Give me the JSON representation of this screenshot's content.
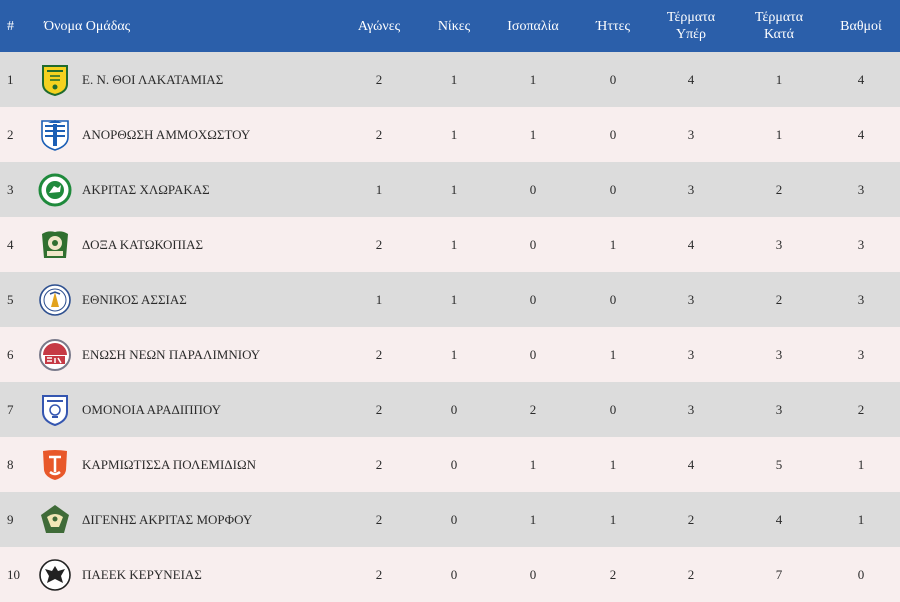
{
  "header": {
    "rank": "#",
    "team": "Όνομα Ομάδας",
    "played": "Αγώνες",
    "wins": "Νίκες",
    "draws": "Ισοπαλία",
    "losses": "Ήττες",
    "gf_line1": "Τέρματα",
    "gf_line2": "Υπέρ",
    "ga_line1": "Τέρματα",
    "ga_line2": "Κατά",
    "points": "Βαθμοί"
  },
  "colors": {
    "header_bg": "#2b5faa",
    "row_odd": "#dcdcdc",
    "row_even": "#f8eeee"
  },
  "rows": [
    {
      "rank": "1",
      "team": "Ε. Ν. ΘΟΙ ΛΑΚΑΤΑΜΙΑΣ",
      "logo": "thoi-crest-icon",
      "played": "2",
      "wins": "1",
      "draws": "1",
      "losses": "0",
      "gf": "4",
      "ga": "1",
      "pts": "4"
    },
    {
      "rank": "2",
      "team": "ΑΝΟΡΘΩΣΗ ΑΜΜΟΧΩΣΤΟΥ",
      "logo": "anorthosis-crest-icon",
      "played": "2",
      "wins": "1",
      "draws": "1",
      "losses": "0",
      "gf": "3",
      "ga": "1",
      "pts": "4"
    },
    {
      "rank": "3",
      "team": "ΑΚΡΙΤΑΣ ΧΛΩΡΑΚΑΣ",
      "logo": "akritas-crest-icon",
      "played": "1",
      "wins": "1",
      "draws": "0",
      "losses": "0",
      "gf": "3",
      "ga": "2",
      "pts": "3"
    },
    {
      "rank": "4",
      "team": "ΔΟΞΑ ΚΑΤΩΚΟΠΙΑΣ",
      "logo": "doxa-crest-icon",
      "played": "2",
      "wins": "1",
      "draws": "0",
      "losses": "1",
      "gf": "4",
      "ga": "3",
      "pts": "3"
    },
    {
      "rank": "5",
      "team": "ΕΘΝΙΚΟΣ ΑΣΣΙΑΣ",
      "logo": "ethnikos-crest-icon",
      "played": "1",
      "wins": "1",
      "draws": "0",
      "losses": "0",
      "gf": "3",
      "ga": "2",
      "pts": "3"
    },
    {
      "rank": "6",
      "team": "ΕΝΩΣΗ ΝΕΩΝ ΠΑΡΑΛΙΜΝΙΟΥ",
      "logo": "enp-crest-icon",
      "played": "2",
      "wins": "1",
      "draws": "0",
      "losses": "1",
      "gf": "3",
      "ga": "3",
      "pts": "3"
    },
    {
      "rank": "7",
      "team": "ΟΜΟΝΟΙΑ ΑΡΑΔΙΠΠΟΥ",
      "logo": "omonia-crest-icon",
      "played": "2",
      "wins": "0",
      "draws": "2",
      "losses": "0",
      "gf": "3",
      "ga": "3",
      "pts": "2"
    },
    {
      "rank": "8",
      "team": "ΚΑΡΜΙΩΤΙΣΣΑ ΠΟΛΕΜΙΔΙΩΝ",
      "logo": "karmiotissa-crest-icon",
      "played": "2",
      "wins": "0",
      "draws": "1",
      "losses": "1",
      "gf": "4",
      "ga": "5",
      "pts": "1"
    },
    {
      "rank": "9",
      "team": "ΔΙΓΕΝΗΣ ΑΚΡΙΤΑΣ ΜΟΡΦΟΥ",
      "logo": "digenis-crest-icon",
      "played": "2",
      "wins": "0",
      "draws": "1",
      "losses": "1",
      "gf": "2",
      "ga": "4",
      "pts": "1"
    },
    {
      "rank": "10",
      "team": "ΠΑΕΕΚ ΚΕΡΥΝΕΙΑΣ",
      "logo": "paeek-crest-icon",
      "played": "2",
      "wins": "0",
      "draws": "0",
      "losses": "2",
      "gf": "2",
      "ga": "7",
      "pts": "0"
    }
  ]
}
